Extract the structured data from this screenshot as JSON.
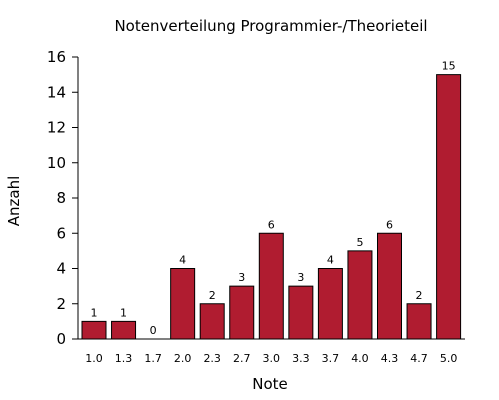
{
  "chart_data": {
    "type": "bar",
    "title": "Notenverteilung Programmier-/Theorieteil",
    "xlabel": "Note",
    "ylabel": "Anzahl",
    "categories": [
      "1.0",
      "1.3",
      "1.7",
      "2.0",
      "2.3",
      "2.7",
      "3.0",
      "3.3",
      "3.7",
      "4.0",
      "4.3",
      "4.7",
      "5.0"
    ],
    "values": [
      1,
      1,
      0,
      4,
      2,
      3,
      6,
      3,
      4,
      5,
      6,
      2,
      15
    ],
    "ylim": [
      0,
      16
    ],
    "yticks": [
      0,
      2,
      4,
      6,
      8,
      10,
      12,
      14,
      16
    ],
    "grid": false,
    "bar_color": "#b01c30",
    "show_data_labels": true
  }
}
